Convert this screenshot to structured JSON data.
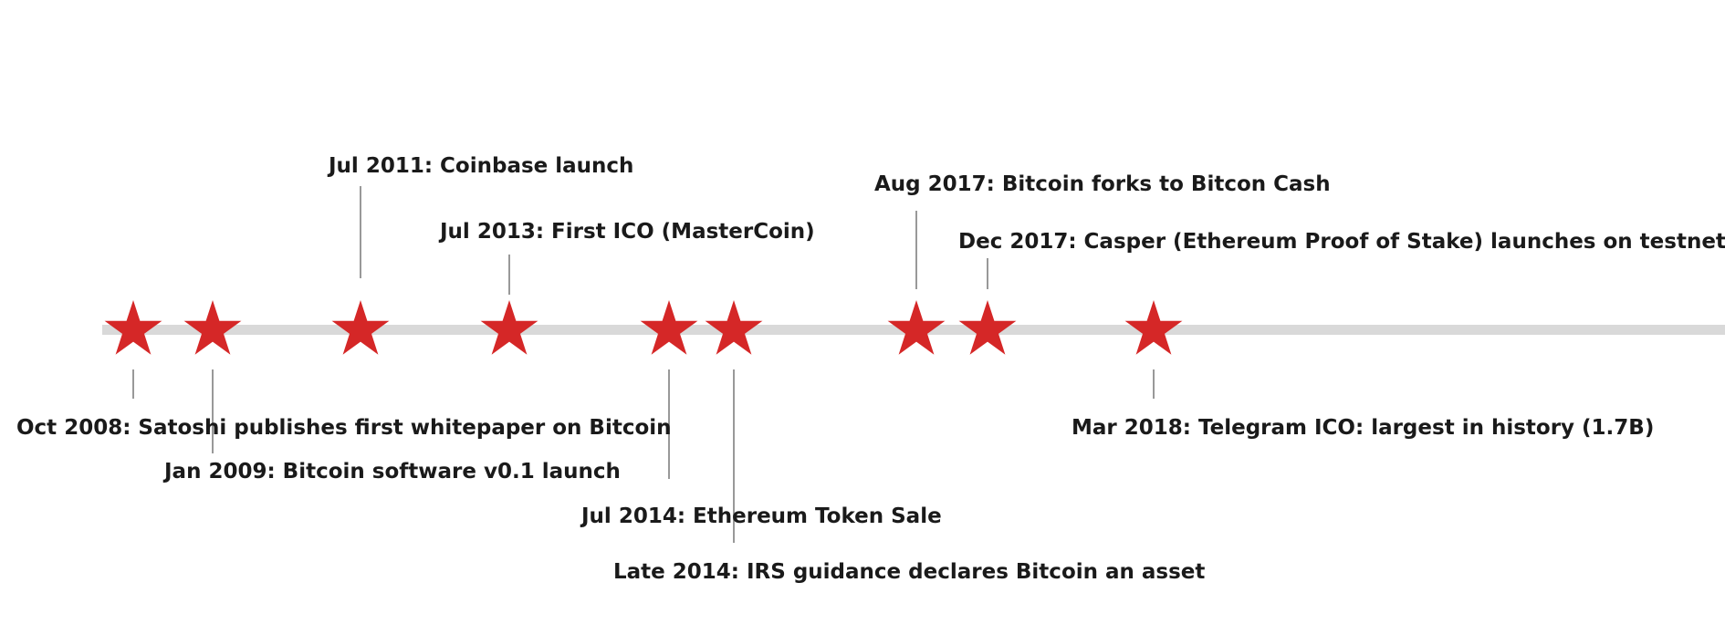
{
  "colors": {
    "axis": "#d9d9d9",
    "star": "#d52727",
    "connector": "#999999",
    "text": "#1a1a1a"
  },
  "events": [
    {
      "id": "oct-2008",
      "text": "Oct 2008: Satoshi publishes first whitepaper on Bitcoin"
    },
    {
      "id": "jan-2009",
      "text": "Jan 2009: Bitcoin software v0.1 launch"
    },
    {
      "id": "jul-2011",
      "text": "Jul 2011: Coinbase launch"
    },
    {
      "id": "jul-2013",
      "text": "Jul 2013: First ICO (MasterCoin)"
    },
    {
      "id": "jul-2014",
      "text": "Jul 2014: Ethereum Token Sale"
    },
    {
      "id": "late-2014",
      "text": "Late 2014: IRS guidance declares Bitcoin an asset"
    },
    {
      "id": "aug-2017",
      "text": "Aug 2017: Bitcoin forks to Bitcon Cash"
    },
    {
      "id": "dec-2017",
      "text": "Dec 2017: Casper (Ethereum Proof of Stake) launches on testnet"
    },
    {
      "id": "mar-2018",
      "text": "Mar 2018: Telegram ICO: largest in history (1.7B)"
    }
  ]
}
